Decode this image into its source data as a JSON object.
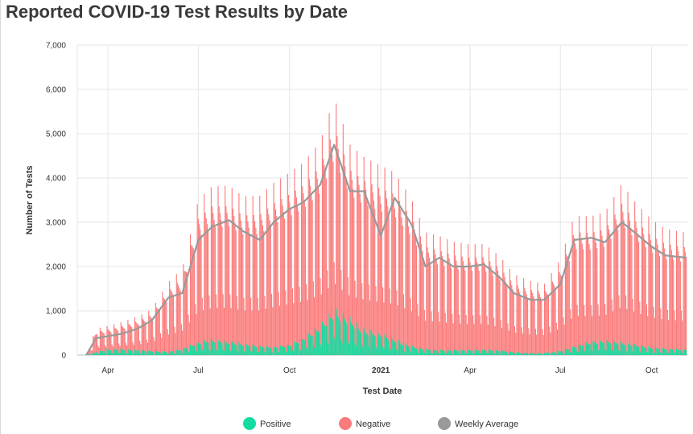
{
  "page": {
    "title": "Reported COVID-19 Test Results by Date"
  },
  "chart_data": {
    "type": "bar",
    "stacked": true,
    "title": "Reported COVID-19 Test Results by Date",
    "xlabel": "Test Date",
    "ylabel": "Number of Tests",
    "ylim": [
      0,
      7000
    ],
    "y_ticks": [
      0,
      1000,
      2000,
      3000,
      4000,
      5000,
      6000,
      7000
    ],
    "y_tick_labels": [
      "0",
      "1,000",
      "2,000",
      "3,000",
      "4,000",
      "5,000",
      "6,000",
      "7,000"
    ],
    "x_range": [
      "2020-03-01",
      "2021-11-06"
    ],
    "x_ticks": [
      {
        "date": "2020-04-01",
        "label": "Apr"
      },
      {
        "date": "2020-07-01",
        "label": "Jul"
      },
      {
        "date": "2020-10-01",
        "label": "Oct"
      },
      {
        "date": "2021-01-01",
        "label": "2021",
        "bold": true
      },
      {
        "date": "2021-04-01",
        "label": "Apr"
      },
      {
        "date": "2021-07-01",
        "label": "Jul"
      },
      {
        "date": "2021-10-01",
        "label": "Oct"
      }
    ],
    "grid": true,
    "legend_position": "bottom",
    "colors": {
      "positive": "#14dba0",
      "negative": "#fa7b7b",
      "weekly_average": "#999999"
    },
    "series": [
      {
        "name": "Positive",
        "kind": "bar",
        "points": [
          [
            "2020-03-10",
            0
          ],
          [
            "2020-03-20",
            60
          ],
          [
            "2020-04-01",
            110
          ],
          [
            "2020-04-15",
            120
          ],
          [
            "2020-05-01",
            100
          ],
          [
            "2020-05-15",
            80
          ],
          [
            "2020-06-01",
            70
          ],
          [
            "2020-06-15",
            120
          ],
          [
            "2020-07-01",
            250
          ],
          [
            "2020-07-15",
            300
          ],
          [
            "2020-08-01",
            260
          ],
          [
            "2020-08-15",
            220
          ],
          [
            "2020-09-01",
            180
          ],
          [
            "2020-09-15",
            160
          ],
          [
            "2020-10-01",
            200
          ],
          [
            "2020-10-15",
            330
          ],
          [
            "2020-11-01",
            560
          ],
          [
            "2020-11-15",
            850
          ],
          [
            "2020-12-01",
            700
          ],
          [
            "2020-12-15",
            480
          ],
          [
            "2021-01-01",
            420
          ],
          [
            "2021-01-15",
            300
          ],
          [
            "2021-02-01",
            170
          ],
          [
            "2021-02-15",
            120
          ],
          [
            "2021-03-01",
            100
          ],
          [
            "2021-03-15",
            100
          ],
          [
            "2021-04-01",
            100
          ],
          [
            "2021-04-15",
            110
          ],
          [
            "2021-05-01",
            90
          ],
          [
            "2021-05-15",
            60
          ],
          [
            "2021-06-01",
            40
          ],
          [
            "2021-06-15",
            40
          ],
          [
            "2021-07-01",
            80
          ],
          [
            "2021-07-15",
            170
          ],
          [
            "2021-08-01",
            260
          ],
          [
            "2021-08-15",
            280
          ],
          [
            "2021-09-01",
            250
          ],
          [
            "2021-09-15",
            200
          ],
          [
            "2021-10-01",
            150
          ],
          [
            "2021-10-15",
            130
          ],
          [
            "2021-11-05",
            110
          ]
        ]
      },
      {
        "name": "Negative",
        "kind": "bar",
        "points": [
          [
            "2020-03-10",
            0
          ],
          [
            "2020-03-20",
            420
          ],
          [
            "2020-04-01",
            420
          ],
          [
            "2020-04-15",
            480
          ],
          [
            "2020-05-01",
            600
          ],
          [
            "2020-05-15",
            750
          ],
          [
            "2020-06-01",
            1250
          ],
          [
            "2020-06-15",
            1450
          ],
          [
            "2020-07-01",
            2550
          ],
          [
            "2020-07-15",
            2750
          ],
          [
            "2020-08-01",
            2800
          ],
          [
            "2020-08-15",
            2650
          ],
          [
            "2020-09-01",
            2700
          ],
          [
            "2020-09-15",
            2950
          ],
          [
            "2020-10-01",
            3100
          ],
          [
            "2020-10-15",
            3150
          ],
          [
            "2020-11-01",
            3300
          ],
          [
            "2020-11-15",
            3800
          ],
          [
            "2020-12-01",
            3100
          ],
          [
            "2020-12-15",
            3100
          ],
          [
            "2021-01-01",
            3000
          ],
          [
            "2021-01-15",
            3000
          ],
          [
            "2021-02-01",
            2650
          ],
          [
            "2021-02-15",
            2100
          ],
          [
            "2021-03-01",
            2050
          ],
          [
            "2021-03-15",
            1950
          ],
          [
            "2021-04-01",
            1900
          ],
          [
            "2021-04-15",
            1900
          ],
          [
            "2021-05-01",
            1700
          ],
          [
            "2021-05-15",
            1400
          ],
          [
            "2021-06-01",
            1300
          ],
          [
            "2021-06-15",
            1250
          ],
          [
            "2021-07-01",
            1650
          ],
          [
            "2021-07-15",
            2350
          ],
          [
            "2021-08-01",
            2250
          ],
          [
            "2021-08-15",
            2300
          ],
          [
            "2021-09-01",
            2850
          ],
          [
            "2021-09-15",
            2550
          ],
          [
            "2021-10-01",
            2300
          ],
          [
            "2021-10-15",
            2150
          ],
          [
            "2021-11-05",
            2100
          ]
        ]
      },
      {
        "name": "Weekly Average",
        "kind": "line",
        "points": [
          [
            "2020-03-10",
            0
          ],
          [
            "2020-03-20",
            380
          ],
          [
            "2020-04-01",
            430
          ],
          [
            "2020-04-15",
            480
          ],
          [
            "2020-05-01",
            600
          ],
          [
            "2020-05-15",
            780
          ],
          [
            "2020-06-01",
            1300
          ],
          [
            "2020-06-15",
            1400
          ],
          [
            "2020-07-01",
            2600
          ],
          [
            "2020-07-15",
            2900
          ],
          [
            "2020-08-01",
            3050
          ],
          [
            "2020-08-15",
            2800
          ],
          [
            "2020-09-01",
            2600
          ],
          [
            "2020-09-15",
            3000
          ],
          [
            "2020-10-01",
            3300
          ],
          [
            "2020-10-15",
            3450
          ],
          [
            "2020-11-01",
            3850
          ],
          [
            "2020-11-15",
            4750
          ],
          [
            "2020-12-01",
            3700
          ],
          [
            "2020-12-15",
            3700
          ],
          [
            "2021-01-01",
            2700
          ],
          [
            "2021-01-15",
            3550
          ],
          [
            "2021-02-01",
            2950
          ],
          [
            "2021-02-15",
            2000
          ],
          [
            "2021-03-01",
            2200
          ],
          [
            "2021-03-15",
            2000
          ],
          [
            "2021-04-01",
            2000
          ],
          [
            "2021-04-15",
            2050
          ],
          [
            "2021-05-01",
            1750
          ],
          [
            "2021-05-15",
            1400
          ],
          [
            "2021-06-01",
            1250
          ],
          [
            "2021-06-15",
            1250
          ],
          [
            "2021-07-01",
            1600
          ],
          [
            "2021-07-15",
            2600
          ],
          [
            "2021-08-01",
            2650
          ],
          [
            "2021-08-15",
            2550
          ],
          [
            "2021-09-01",
            3000
          ],
          [
            "2021-09-15",
            2750
          ],
          [
            "2021-10-01",
            2450
          ],
          [
            "2021-10-15",
            2250
          ],
          [
            "2021-11-05",
            2200
          ]
        ]
      }
    ]
  }
}
